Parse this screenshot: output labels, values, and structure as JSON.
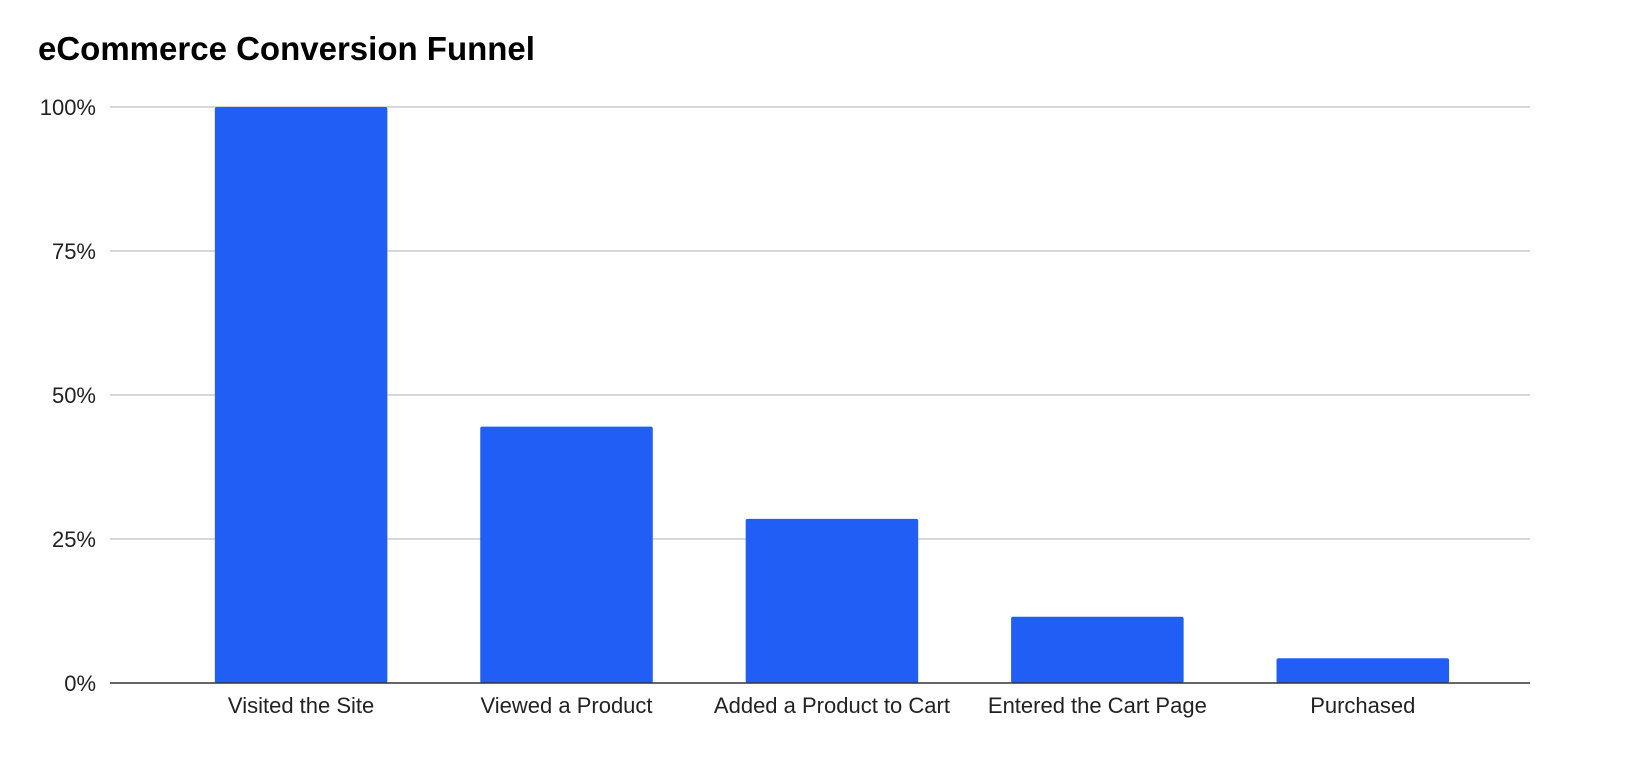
{
  "chart_data": {
    "type": "bar",
    "title": "eCommerce Conversion Funnel",
    "xlabel": "",
    "ylabel": "",
    "categories": [
      "Visited the Site",
      "Viewed a Product",
      "Added a Product to Cart",
      "Entered the Cart Page",
      "Purchased"
    ],
    "values": [
      100,
      44.5,
      28.5,
      11.5,
      4.3
    ],
    "value_unit": "%",
    "ylim": [
      0,
      100
    ],
    "yticks": [
      0,
      25,
      50,
      75,
      100
    ],
    "ytick_labels": [
      "0%",
      "25%",
      "50%",
      "75%",
      "100%"
    ],
    "grid": true,
    "legend": "none",
    "bar_color": "#215EF5"
  }
}
